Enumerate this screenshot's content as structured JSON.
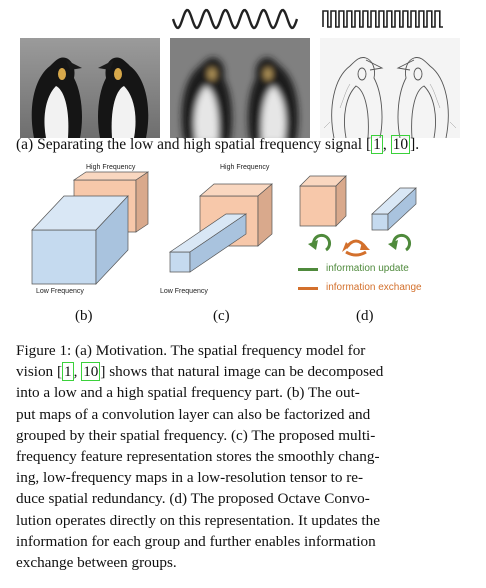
{
  "panel_a": {
    "caption_prefix": "(a) Separating the low and high spatial frequency signal ",
    "cite_1": "1",
    "cite_sep": ", ",
    "cite_2": "10",
    "caption_suffix": "."
  },
  "panel_b": {
    "label_high": "High Frequency",
    "label_low": "Low Frequency",
    "sublabel": "(b)"
  },
  "panel_c": {
    "label_high": "High Frequency",
    "label_low": "Low Frequency",
    "sublabel": "(c)"
  },
  "panel_d": {
    "legend_update": "information update",
    "legend_exchange": "information exchange",
    "sublabel": "(d)"
  },
  "colors": {
    "low_freq_fill": "#c5daef",
    "high_freq_fill": "#f7c8aa",
    "update_green": "#4f8a3c",
    "exchange_orange": "#d3702c",
    "citation_box": "#3bd13b"
  },
  "figure_caption": {
    "line1": "Figure 1: (a) Motivation. The spatial frequency model for",
    "line2_pre": "vision ",
    "line2_cite1": "1",
    "line2_sep": ", ",
    "line2_cite2": "10",
    "line2_post": " shows that natural image can be decomposed",
    "line3": "into a low and a high spatial frequency part. (b) The out-",
    "line4": "put maps of a convolution layer can also be factorized and",
    "line5": "grouped by their spatial frequency. (c) The proposed multi-",
    "line6": "frequency feature representation stores the smoothly chang-",
    "line7": "ing, low-frequency maps in a low-resolution tensor to re-",
    "line8": "duce spatial redundancy. (d) The proposed Octave Convo-",
    "line9": "lution operates directly on this representation. It updates the",
    "line10": "information for each group and further enables information",
    "line11": "exchange between groups."
  }
}
